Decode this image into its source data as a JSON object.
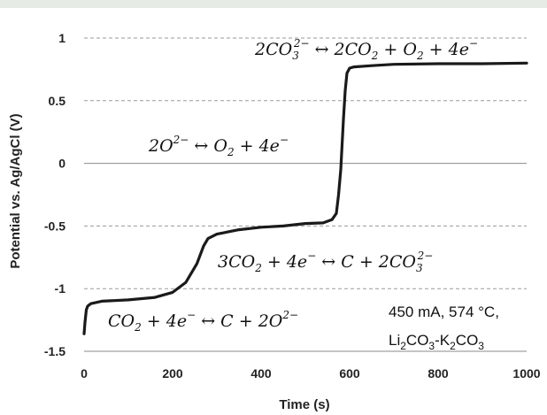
{
  "chart_data": {
    "type": "line",
    "title": "",
    "xlabel": "Time (s)",
    "ylabel": "Potential vs. Ag/AgCl (V)",
    "xlim": [
      0,
      1000
    ],
    "ylim": [
      -1.5,
      1
    ],
    "x_ticks": [
      "0",
      "200",
      "400",
      "600",
      "800",
      "1000"
    ],
    "y_ticks": [
      "1",
      "0.5",
      "0",
      "-0.5",
      "-1",
      "-1.5"
    ],
    "grid": "horizontal dashed",
    "series": [
      {
        "color": "#1a1a1a",
        "x": [
          0,
          2,
          5,
          8,
          15,
          40,
          100,
          160,
          200,
          230,
          255,
          270,
          280,
          300,
          350,
          400,
          450,
          500,
          540,
          560,
          570,
          575,
          580,
          583,
          586,
          590,
          594,
          600,
          610,
          650,
          700,
          800,
          900,
          1000
        ],
        "y": [
          -1.36,
          -1.27,
          -1.17,
          -1.14,
          -1.12,
          -1.1,
          -1.09,
          -1.07,
          -1.03,
          -0.95,
          -0.8,
          -0.66,
          -0.6,
          -0.565,
          -0.53,
          -0.51,
          -0.5,
          -0.48,
          -0.475,
          -0.45,
          -0.4,
          -0.25,
          -0.05,
          0.15,
          0.35,
          0.58,
          0.72,
          0.76,
          0.77,
          0.78,
          0.79,
          0.795,
          0.795,
          0.8
        ]
      }
    ],
    "reference_lines": [
      {
        "y": 0,
        "style": "solid"
      }
    ],
    "annotations": {
      "eq1": {
        "a": "2CO",
        "a_sub": "3",
        "a_sup": "2−",
        "b": " ↔ 2CO",
        "b_sub": "2",
        "c": " + O",
        "c_sub": "2",
        "d": " + 4e",
        "d_sup": "−"
      },
      "eq2": {
        "a": "2O",
        "a_sup": "2−",
        "b": " ↔ O",
        "b_sub": "2",
        "c": " + 4e",
        "c_sup": "−"
      },
      "eq3": {
        "a": "3CO",
        "a_sub": "2",
        "b": " + 4e",
        "b_sup": "−",
        "c": " ↔ C + 2CO",
        "c_sub": "3",
        "c_sup": "2−"
      },
      "eq4": {
        "a": "CO",
        "a_sub": "2",
        "b": " + 4e",
        "b_sup": "−",
        "c": " ↔ C + 2O",
        "c_sup": "2−"
      },
      "conditions": "450 mA, 574 °C,",
      "electrolyte": {
        "p1": "Li",
        "s1": "2",
        "p2": "CO",
        "s2": "3",
        "p3": "-K",
        "s3": "2",
        "p4": "CO",
        "s4": "3"
      }
    }
  }
}
